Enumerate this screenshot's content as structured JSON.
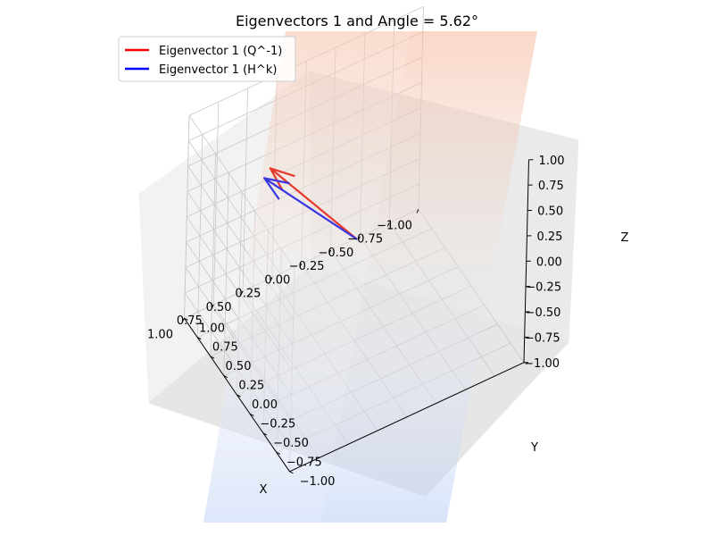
{
  "chart_data": {
    "type": "3d-quiver",
    "title": "Eigenvectors 1 and Angle = 5.62°",
    "xlabel": "X",
    "ylabel": "Y",
    "zlabel": "Z",
    "xlim": [
      -1,
      1
    ],
    "ylim": [
      -1,
      1
    ],
    "zlim": [
      -1,
      1
    ],
    "xticks": [
      "−1.00",
      "−0.75",
      "−0.50",
      "−0.25",
      "0.00",
      "0.25",
      "0.50",
      "0.75",
      "1.00"
    ],
    "yticks": [
      "−1.00",
      "−0.75",
      "−0.50",
      "−0.25",
      "0.00",
      "0.25",
      "0.50",
      "0.75",
      "1.00"
    ],
    "zticks": [
      "−1.00",
      "−0.75",
      "−0.50",
      "−0.25",
      "0.00",
      "0.25",
      "0.50",
      "0.75",
      "1.00"
    ],
    "grid": true,
    "legend_position": "top-left",
    "surface_colormap": "coolwarm",
    "series": [
      {
        "name": "Eigenvector 1 (Q^-1)",
        "color": "#ff0000",
        "origin": [
          0,
          0,
          0
        ],
        "vector": [
          0.5,
          0.55,
          0.55
        ]
      },
      {
        "name": "Eigenvector 1 (H^k)",
        "color": "#0000ff",
        "origin": [
          0,
          0,
          0
        ],
        "vector": [
          0.55,
          0.55,
          0.48
        ]
      }
    ]
  }
}
